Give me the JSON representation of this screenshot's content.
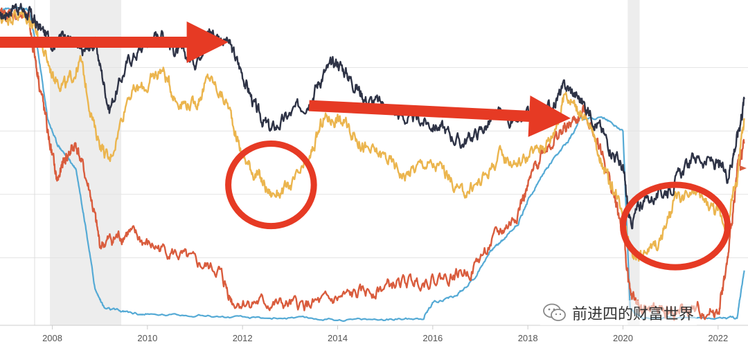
{
  "chart_data": {
    "type": "line",
    "x_ticks": [
      "2008",
      "2010",
      "2012",
      "2014",
      "2016",
      "2018",
      "2020",
      "2022"
    ],
    "xlim": [
      2006.9,
      2022.6
    ],
    "ylim": [
      0,
      100
    ],
    "recession_bands": [
      [
        2007.95,
        2009.45
      ],
      [
        2020.1,
        2020.35
      ]
    ],
    "grid": true,
    "series": [
      {
        "color": "#2e3346",
        "x": [
          2006.9,
          2007.2,
          2007.5,
          2007.7,
          2008.0,
          2008.3,
          2008.6,
          2008.9,
          2009.2,
          2009.6,
          2010.0,
          2010.3,
          2010.6,
          2011.0,
          2011.3,
          2011.7,
          2012.0,
          2012.3,
          2012.6,
          2013.0,
          2013.4,
          2013.7,
          2014.0,
          2014.3,
          2014.6,
          2015.0,
          2015.4,
          2015.8,
          2016.2,
          2016.6,
          2017.0,
          2017.4,
          2017.8,
          2018.2,
          2018.5,
          2018.8,
          2019.1,
          2019.4,
          2019.7,
          2020.0,
          2020.15,
          2020.4,
          2020.8,
          2021.1,
          2021.5,
          2021.9,
          2022.2,
          2022.4,
          2022.55
        ],
        "y": [
          95,
          100,
          97,
          93,
          88,
          91,
          84,
          88,
          67,
          82,
          88,
          91,
          85,
          82,
          92,
          88,
          78,
          66,
          60,
          65,
          70,
          78,
          82,
          76,
          70,
          68,
          64,
          63,
          61,
          56,
          60,
          65,
          62,
          66,
          68,
          74,
          70,
          64,
          56,
          48,
          30,
          38,
          40,
          44,
          52,
          50,
          46,
          58,
          70
        ]
      },
      {
        "color": "#ebb54e",
        "x": [
          2006.9,
          2007.2,
          2007.5,
          2007.7,
          2008.0,
          2008.3,
          2008.6,
          2008.9,
          2009.2,
          2009.6,
          2010.0,
          2010.3,
          2010.6,
          2011.0,
          2011.3,
          2011.7,
          2012.0,
          2012.3,
          2012.6,
          2013.0,
          2013.4,
          2013.7,
          2014.0,
          2014.3,
          2014.6,
          2015.0,
          2015.4,
          2015.8,
          2016.2,
          2016.6,
          2017.0,
          2017.4,
          2017.8,
          2018.2,
          2018.5,
          2018.8,
          2019.1,
          2019.4,
          2019.7,
          2020.0,
          2020.15,
          2020.4,
          2020.8,
          2021.1,
          2021.5,
          2021.9,
          2022.2,
          2022.4,
          2022.55
        ],
        "y": [
          95,
          97,
          96,
          90,
          78,
          74,
          82,
          60,
          50,
          72,
          74,
          80,
          70,
          68,
          77,
          68,
          52,
          46,
          40,
          42,
          50,
          64,
          64,
          60,
          54,
          52,
          46,
          50,
          48,
          40,
          44,
          52,
          50,
          54,
          58,
          72,
          66,
          58,
          44,
          36,
          22,
          20,
          26,
          38,
          40,
          36,
          30,
          46,
          64
        ]
      },
      {
        "color": "#d95c3d",
        "x": [
          2006.9,
          2007.2,
          2007.5,
          2007.7,
          2007.9,
          2008.1,
          2008.3,
          2008.5,
          2008.8,
          2009.0,
          2009.3,
          2009.6,
          2010.0,
          2010.5,
          2011.0,
          2011.5,
          2011.8,
          2012.3,
          2012.8,
          2013.3,
          2013.8,
          2014.3,
          2014.8,
          2015.3,
          2015.8,
          2016.3,
          2016.8,
          2017.3,
          2017.7,
          2018.0,
          2018.3,
          2018.6,
          2018.9,
          2019.2,
          2019.5,
          2019.8,
          2020.0,
          2020.15,
          2020.4,
          2020.8,
          2021.2,
          2021.6,
          2022.0,
          2022.2,
          2022.4,
          2022.55
        ],
        "y": [
          96,
          97,
          95,
          78,
          60,
          44,
          52,
          56,
          40,
          24,
          26,
          28,
          24,
          22,
          18,
          16,
          6,
          6,
          5,
          5,
          6,
          8,
          10,
          12,
          13,
          14,
          16,
          26,
          32,
          42,
          54,
          58,
          62,
          66,
          56,
          40,
          28,
          8,
          4,
          3,
          3,
          3,
          3,
          18,
          48,
          56
        ]
      },
      {
        "color": "#55aad5",
        "x": [
          2006.9,
          2007.2,
          2007.5,
          2007.7,
          2007.9,
          2008.1,
          2008.3,
          2008.5,
          2008.7,
          2008.9,
          2009.1,
          2009.5,
          2010.0,
          2011.0,
          2012.0,
          2013.0,
          2014.0,
          2015.0,
          2015.8,
          2016.0,
          2016.5,
          2016.9,
          2017.2,
          2017.5,
          2017.8,
          2018.0,
          2018.3,
          2018.6,
          2018.9,
          2019.1,
          2019.6,
          2020.0,
          2020.15,
          2020.4,
          2021.0,
          2022.0,
          2022.4,
          2022.55
        ],
        "y": [
          98,
          99,
          98,
          85,
          64,
          56,
          52,
          48,
          30,
          10,
          4,
          3,
          2,
          2,
          1,
          1,
          0.5,
          0.5,
          1,
          6,
          8,
          14,
          22,
          26,
          31,
          38,
          46,
          52,
          58,
          64,
          64,
          60,
          4,
          1,
          1,
          1,
          1,
          16
        ]
      }
    ],
    "annotations": [
      {
        "shape": "arrow",
        "color": "#e63a24",
        "from": [
          2006.9,
          88
        ],
        "to": [
          2011.7,
          88
        ]
      },
      {
        "shape": "arrow",
        "color": "#e63a24",
        "from": [
          2013.4,
          68
        ],
        "to": [
          2018.9,
          64
        ]
      },
      {
        "shape": "ellipse",
        "color": "#e63a24",
        "center": [
          2012.6,
          43
        ],
        "radius_x": 0.9,
        "radius_y": 13
      },
      {
        "shape": "ellipse",
        "color": "#e63a24",
        "center": [
          2021.1,
          30
        ],
        "radius_x": 1.1,
        "radius_y": 13
      }
    ]
  },
  "watermark": {
    "text": "前进四的财富世界",
    "icon": "wechat-icon"
  }
}
